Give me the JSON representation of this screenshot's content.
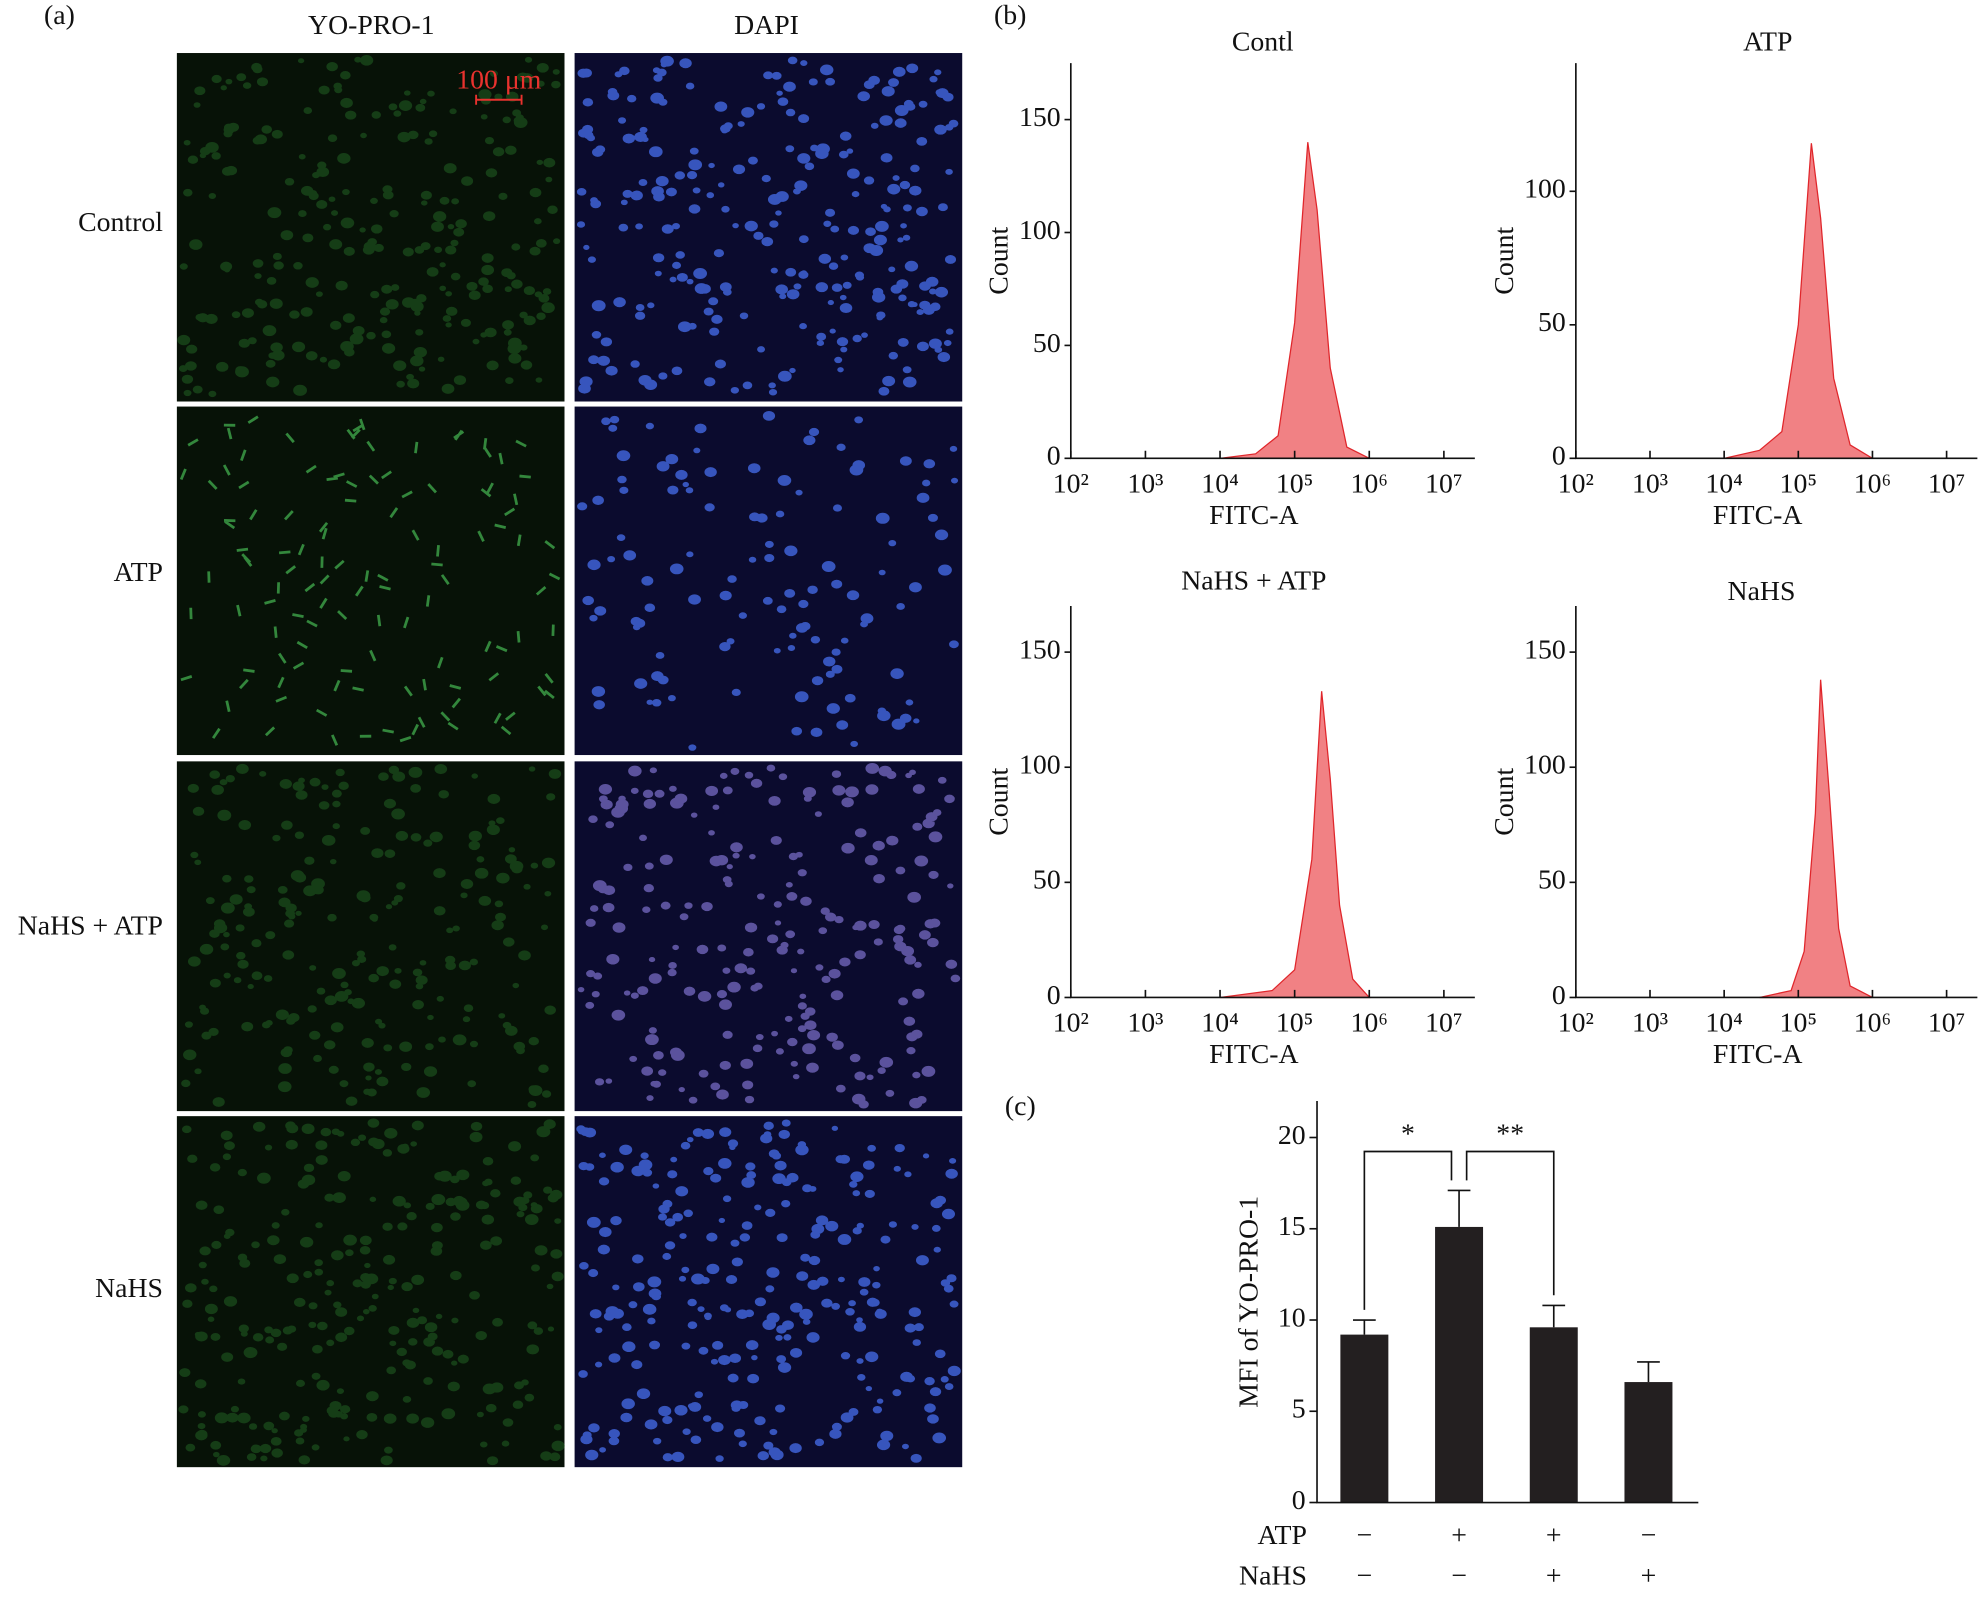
{
  "panels": {
    "a": "(a)",
    "b": "(b)",
    "c": "(c)"
  },
  "micrographs": {
    "columns": [
      "YO-PRO-1",
      "DAPI"
    ],
    "rows": [
      "Control",
      "ATP",
      "NaHS + ATP",
      "NaHS"
    ],
    "scale_bar": "100 μm"
  },
  "chart_data": [
    {
      "type": "area",
      "title": "Contl",
      "x_label": "FITC-A",
      "y_label": "Count",
      "log_x": true,
      "color": "#ee6b6e",
      "x": [
        10000,
        30000,
        60000,
        100000,
        150000,
        200000,
        300000,
        500000,
        1000000
      ],
      "values": [
        0,
        2,
        10,
        60,
        140,
        110,
        40,
        5,
        0
      ],
      "xlim": [
        100,
        26000000
      ],
      "xticks": [
        {
          "value": 100,
          "label": "10²"
        },
        {
          "value": 1000,
          "label": "10³"
        },
        {
          "value": 10000,
          "label": "10⁴"
        },
        {
          "value": 100000,
          "label": "10⁵"
        },
        {
          "value": 1000000,
          "label": "10⁶"
        },
        {
          "value": 10000000,
          "label": "10⁷"
        }
      ],
      "ylim": [
        0,
        175
      ],
      "yticks": [
        0,
        50,
        100,
        150
      ]
    },
    {
      "type": "area",
      "title": "ATP",
      "x_label": "FITC-A",
      "y_label": "Count",
      "log_x": true,
      "color": "#ee6b6e",
      "x": [
        10000,
        30000,
        60000,
        100000,
        150000,
        200000,
        300000,
        500000,
        1000000
      ],
      "values": [
        0,
        3,
        10,
        50,
        118,
        90,
        30,
        5,
        0
      ],
      "xlim": [
        100,
        26000000
      ],
      "xticks": [
        {
          "value": 100,
          "label": "10²"
        },
        {
          "value": 1000,
          "label": "10³"
        },
        {
          "value": 10000,
          "label": "10⁴"
        },
        {
          "value": 100000,
          "label": "10⁵"
        },
        {
          "value": 1000000,
          "label": "10⁶"
        },
        {
          "value": 10000000,
          "label": "10⁷"
        }
      ],
      "ylim": [
        0,
        148
      ],
      "yticks": [
        0,
        50,
        100
      ]
    },
    {
      "type": "area",
      "title": "NaHS + ATP",
      "x_label": "FITC-A",
      "y_label": "Count",
      "log_x": true,
      "color": "#ee6b6e",
      "x": [
        10000,
        50000,
        100000,
        170000,
        230000,
        300000,
        400000,
        600000,
        1000000
      ],
      "values": [
        0,
        3,
        12,
        60,
        133,
        95,
        40,
        8,
        0
      ],
      "xlim": [
        100,
        26000000
      ],
      "xticks": [
        {
          "value": 100,
          "label": "10²"
        },
        {
          "value": 1000,
          "label": "10³"
        },
        {
          "value": 10000,
          "label": "10⁴"
        },
        {
          "value": 100000,
          "label": "10⁵"
        },
        {
          "value": 1000000,
          "label": "10⁶"
        },
        {
          "value": 10000000,
          "label": "10⁷"
        }
      ],
      "ylim": [
        0,
        170
      ],
      "yticks": [
        0,
        50,
        100,
        150
      ]
    },
    {
      "type": "area",
      "title": "NaHS",
      "x_label": "FITC-A",
      "y_label": "Count",
      "log_x": true,
      "color": "#ee6b6e",
      "x": [
        30000,
        80000,
        120000,
        170000,
        200000,
        260000,
        350000,
        500000,
        1000000
      ],
      "values": [
        0,
        3,
        20,
        80,
        138,
        90,
        30,
        5,
        0
      ],
      "xlim": [
        100,
        26000000
      ],
      "xticks": [
        {
          "value": 100,
          "label": "10²"
        },
        {
          "value": 1000,
          "label": "10³"
        },
        {
          "value": 10000,
          "label": "10⁴"
        },
        {
          "value": 100000,
          "label": "10⁵"
        },
        {
          "value": 1000000,
          "label": "10⁶"
        },
        {
          "value": 10000000,
          "label": "10⁷"
        }
      ],
      "ylim": [
        0,
        170
      ],
      "yticks": [
        0,
        50,
        100,
        150
      ]
    },
    {
      "type": "bar",
      "y_label": "MFI of YO-PRO-1",
      "color": "#231f20",
      "factors": [
        {
          "name": "ATP",
          "signs": [
            "−",
            "+",
            "+",
            "−"
          ]
        },
        {
          "name": "NaHS",
          "signs": [
            "−",
            "−",
            "+",
            "+"
          ]
        }
      ],
      "values": [
        9.2,
        15.1,
        9.6,
        6.6
      ],
      "errors": [
        0.8,
        2.0,
        1.2,
        1.1
      ],
      "ylim": [
        0,
        22
      ],
      "yticks": [
        0,
        5,
        10,
        15,
        20
      ],
      "annotations": [
        {
          "text": "*",
          "from": 0,
          "to": 1
        },
        {
          "text": "**",
          "from": 1,
          "to": 2
        }
      ]
    }
  ]
}
